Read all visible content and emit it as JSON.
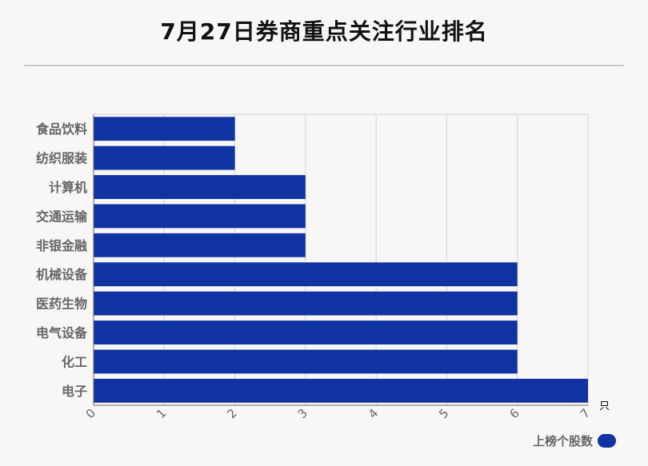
{
  "title": "7月27日券商重点关注行业排名",
  "chart_data": {
    "type": "bar",
    "orientation": "horizontal",
    "categories": [
      "食品饮料",
      "纺织服装",
      "计算机",
      "交通运输",
      "非银金融",
      "机械设备",
      "医药生物",
      "电气设备",
      "化工",
      "电子"
    ],
    "series": [
      {
        "name": "上榜个股数",
        "values": [
          2,
          2,
          3,
          3,
          3,
          6,
          6,
          6,
          6,
          7
        ]
      }
    ],
    "xlim": [
      0,
      7
    ],
    "xticks": [
      "0",
      "1",
      "2",
      "3",
      "4",
      "5",
      "6",
      "7"
    ],
    "xunit": "只",
    "grid": true,
    "legend_position": "bottom-right",
    "bar_color": "#0f33a0"
  }
}
